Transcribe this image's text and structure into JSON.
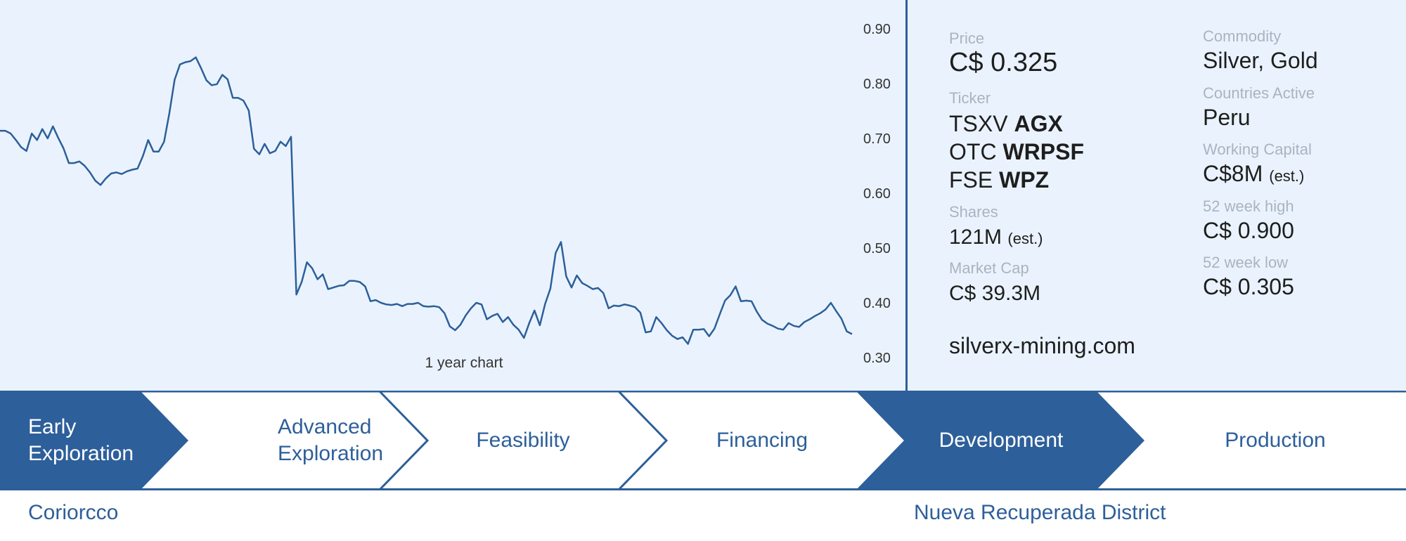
{
  "chart_data": {
    "type": "line",
    "caption": "1 year chart",
    "y_ticks": [
      "0.90",
      "0.80",
      "0.70",
      "0.60",
      "0.50",
      "0.40",
      "0.30"
    ],
    "ylim": [
      0.3,
      0.9
    ],
    "line_color": "#2d5f9a",
    "background": "#eaf3fd",
    "series": [
      {
        "values": [
          0.714,
          0.714,
          0.709,
          0.697,
          0.684,
          0.677,
          0.709,
          0.697,
          0.717,
          0.7,
          0.722,
          0.701,
          0.682,
          0.655,
          0.655,
          0.658,
          0.65,
          0.638,
          0.623,
          0.615,
          0.627,
          0.636,
          0.638,
          0.635,
          0.64,
          0.643,
          0.645,
          0.668,
          0.697,
          0.676,
          0.676,
          0.694,
          0.746,
          0.807,
          0.835,
          0.839,
          0.841,
          0.848,
          0.828,
          0.806,
          0.797,
          0.799,
          0.816,
          0.808,
          0.774,
          0.774,
          0.769,
          0.751,
          0.681,
          0.671,
          0.69,
          0.673,
          0.677,
          0.694,
          0.686,
          0.703,
          0.415,
          0.438,
          0.474,
          0.463,
          0.443,
          0.452,
          0.425,
          0.428,
          0.431,
          0.432,
          0.44,
          0.44,
          0.438,
          0.43,
          0.403,
          0.405,
          0.4,
          0.397,
          0.396,
          0.398,
          0.394,
          0.398,
          0.398,
          0.4,
          0.394,
          0.393,
          0.394,
          0.392,
          0.381,
          0.357,
          0.35,
          0.36,
          0.377,
          0.39,
          0.4,
          0.397,
          0.37,
          0.376,
          0.38,
          0.365,
          0.374,
          0.36,
          0.351,
          0.336,
          0.363,
          0.386,
          0.359,
          0.398,
          0.426,
          0.491,
          0.511,
          0.448,
          0.428,
          0.45,
          0.436,
          0.431,
          0.425,
          0.427,
          0.418,
          0.39,
          0.395,
          0.394,
          0.397,
          0.395,
          0.392,
          0.382,
          0.346,
          0.348,
          0.374,
          0.363,
          0.35,
          0.34,
          0.334,
          0.337,
          0.325,
          0.351,
          0.351,
          0.352,
          0.339,
          0.353,
          0.379,
          0.404,
          0.414,
          0.43,
          0.403,
          0.404,
          0.403,
          0.384,
          0.369,
          0.362,
          0.358,
          0.353,
          0.351,
          0.363,
          0.358,
          0.356,
          0.365,
          0.37,
          0.376,
          0.381,
          0.388,
          0.4,
          0.385,
          0.371,
          0.348,
          0.343
        ]
      }
    ]
  },
  "stock_info": {
    "price_label": "Price",
    "price_value": "C$ 0.325",
    "ticker_label": "Ticker",
    "tickers": [
      {
        "exchange": "TSXV",
        "symbol": "AGX"
      },
      {
        "exchange": "OTC",
        "symbol": "WRPSF"
      },
      {
        "exchange": "FSE",
        "symbol": "WPZ"
      }
    ],
    "shares_label": "Shares",
    "shares_value": "121M",
    "shares_note": "(est.)",
    "market_cap_label": "Market Cap",
    "market_cap_value": "C$ 39.3M",
    "website": "silverx-mining.com",
    "commodity_label": "Commodity",
    "commodity_value": "Silver, Gold",
    "countries_label": "Countries Active",
    "countries_value": "Peru",
    "working_capital_label": "Working Capital",
    "working_capital_value": "C$8M",
    "working_capital_note": "(est.)",
    "high_label": "52 week high",
    "high_value": "C$ 0.900",
    "low_label": "52 week low",
    "low_value": "C$ 0.305"
  },
  "stages": [
    {
      "line1": "Early",
      "line2": "Exploration",
      "active": true
    },
    {
      "line1": "Advanced",
      "line2": "Exploration",
      "active": false
    },
    {
      "line1": "Feasibility",
      "line2": "",
      "active": false
    },
    {
      "line1": "Financing",
      "line2": "",
      "active": false
    },
    {
      "line1": "Development",
      "line2": "",
      "active": true
    },
    {
      "line1": "Production",
      "line2": "",
      "active": false
    }
  ],
  "projects": [
    {
      "name": "Coriorcco"
    },
    {
      "name": "Nueva Recuperada District"
    }
  ],
  "colors": {
    "accent": "#2d5f9a",
    "text": "#1e1e1e",
    "muted": "#a9b4c0"
  }
}
